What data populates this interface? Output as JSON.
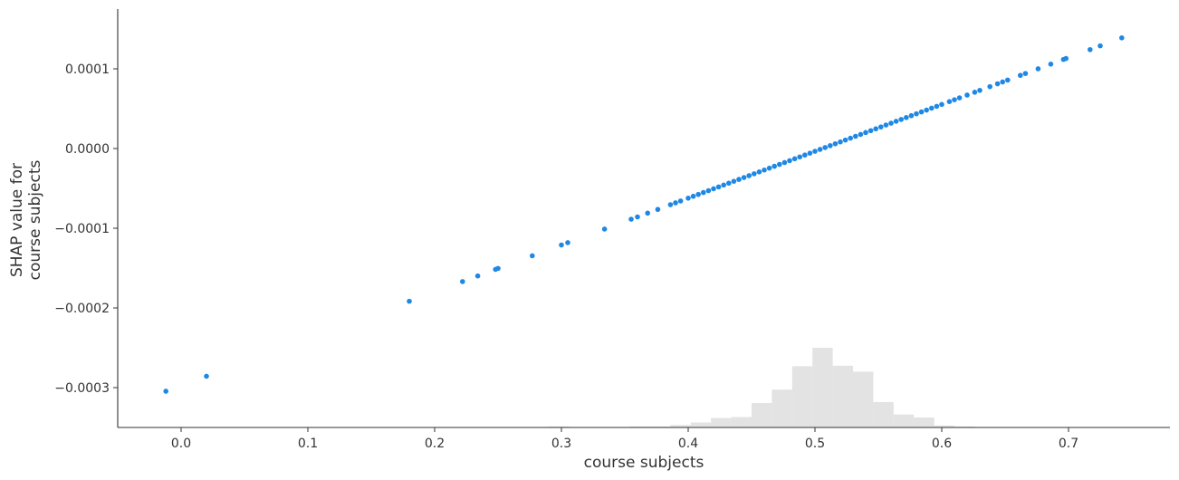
{
  "chart_data": {
    "type": "scatter",
    "xlabel": "course subjects",
    "ylabel": [
      "SHAP value for",
      "course subjects"
    ],
    "xlim": [
      -0.05,
      0.78
    ],
    "ylim": [
      -0.00035,
      0.000175
    ],
    "x_ticks": [
      0.0,
      0.1,
      0.2,
      0.3,
      0.4,
      0.5,
      0.6,
      0.7
    ],
    "x_tick_labels": [
      "0.0",
      "0.1",
      "0.2",
      "0.3",
      "0.4",
      "0.5",
      "0.6",
      "0.7"
    ],
    "y_ticks": [
      -0.0003,
      -0.0002,
      -0.0001,
      0.0,
      0.0001
    ],
    "y_tick_labels": [
      "−0.0003",
      "−0.0002",
      "−0.0001",
      "0.0000",
      "0.0001"
    ],
    "grid": false,
    "colors": {
      "points": "#1e88e5",
      "histogram": "#e3e3e3",
      "axis": "#333333"
    },
    "points_x": [
      -0.012,
      0.02,
      0.18,
      0.222,
      0.234,
      0.248,
      0.25,
      0.277,
      0.3,
      0.305,
      0.334,
      0.355,
      0.36,
      0.368,
      0.376,
      0.386,
      0.39,
      0.394,
      0.4,
      0.404,
      0.408,
      0.412,
      0.416,
      0.42,
      0.424,
      0.428,
      0.432,
      0.436,
      0.44,
      0.444,
      0.448,
      0.452,
      0.456,
      0.46,
      0.464,
      0.468,
      0.472,
      0.476,
      0.48,
      0.484,
      0.488,
      0.492,
      0.496,
      0.5,
      0.504,
      0.508,
      0.512,
      0.516,
      0.52,
      0.524,
      0.528,
      0.532,
      0.536,
      0.54,
      0.544,
      0.548,
      0.552,
      0.556,
      0.56,
      0.564,
      0.568,
      0.572,
      0.576,
      0.58,
      0.584,
      0.588,
      0.592,
      0.596,
      0.6,
      0.606,
      0.61,
      0.614,
      0.62,
      0.626,
      0.63,
      0.638,
      0.644,
      0.648,
      0.652,
      0.662,
      0.666,
      0.676,
      0.686,
      0.696,
      0.698,
      0.717,
      0.725,
      0.742
    ],
    "slope": 0.000588,
    "x_at_zero_shap": 0.5059,
    "histogram": {
      "bin_edges": [
        -0.018,
        0.0,
        0.018,
        0.034,
        0.05,
        0.066,
        0.082,
        0.098,
        0.114,
        0.13,
        0.146,
        0.162,
        0.178,
        0.194,
        0.21,
        0.226,
        0.242,
        0.258,
        0.274,
        0.29,
        0.306,
        0.322,
        0.338,
        0.354,
        0.37,
        0.386,
        0.402,
        0.418,
        0.434,
        0.45,
        0.466,
        0.482,
        0.498,
        0.514,
        0.53,
        0.546,
        0.562,
        0.578,
        0.594,
        0.61,
        0.626,
        0.642,
        0.658,
        0.674,
        0.69,
        0.706,
        0.722,
        0.738,
        0.754
      ],
      "counts": [
        1,
        1,
        0,
        0,
        0,
        0,
        0,
        0,
        0,
        0,
        0,
        1,
        0,
        0,
        0,
        1,
        1,
        1,
        0,
        2,
        1,
        0,
        1,
        2,
        2,
        5,
        10,
        19,
        21,
        49,
        76,
        123,
        160,
        124,
        112,
        51,
        26,
        20,
        4,
        2,
        1,
        1,
        0,
        1,
        1,
        1,
        0,
        1
      ]
    }
  }
}
